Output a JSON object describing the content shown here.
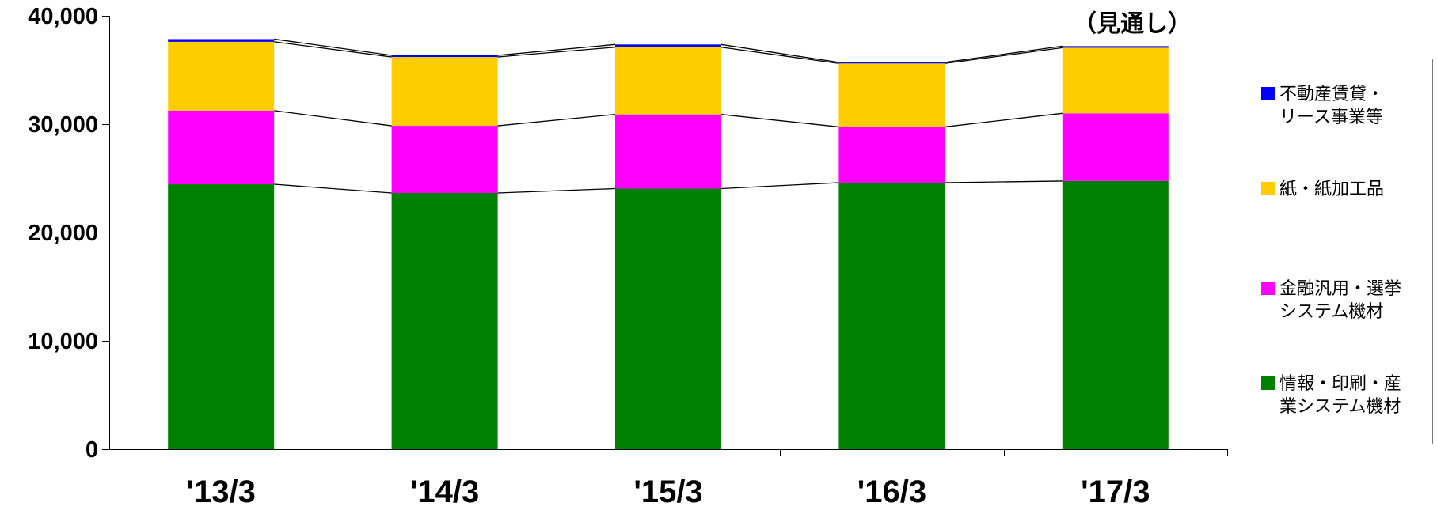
{
  "chart_data": {
    "type": "bar",
    "stacked": true,
    "categories": [
      "'13/3",
      "'14/3",
      "'15/3",
      "'16/3",
      "'17/3"
    ],
    "series": [
      {
        "name": "情報・印刷・産業システム機材",
        "color": "#008000",
        "values": [
          24450,
          23650,
          24050,
          24600,
          24750
        ]
      },
      {
        "name": "金融汎用・選挙システム機材",
        "color": "#ff00ff",
        "values": [
          6800,
          6200,
          6850,
          5150,
          6250
        ]
      },
      {
        "name": "紙・紙加工品",
        "color": "#ffcc00",
        "values": [
          6350,
          6350,
          6200,
          5850,
          6050
        ]
      },
      {
        "name": "不動産賃貸・リース事業等",
        "color": "#0000ff",
        "values": [
          250,
          150,
          250,
          100,
          150
        ]
      }
    ],
    "ylim": [
      0,
      40000
    ],
    "yticks": [
      "0",
      "10,000",
      "20,000",
      "30,000",
      "40,000"
    ],
    "ytick_values": [
      0,
      10000,
      20000,
      30000,
      40000
    ],
    "annotation": "（見通し）",
    "legend_position": "right",
    "series_connector_lines": true
  },
  "legend": {
    "items": [
      {
        "line1": "不動産賃貸・",
        "line2": "リース事業等",
        "color": "#0000ff"
      },
      {
        "line1": "紙・紙加工品",
        "line2": "",
        "color": "#ffcc00"
      },
      {
        "line1": "金融汎用・選挙",
        "line2": "システム機材",
        "color": "#ff00ff"
      },
      {
        "line1": "情報・印刷・産",
        "line2": "業システム機材",
        "color": "#008000"
      }
    ]
  }
}
